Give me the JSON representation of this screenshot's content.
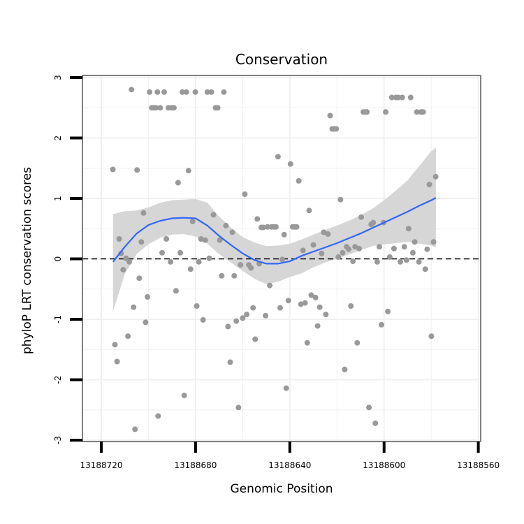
{
  "chart_data": {
    "type": "scatter",
    "title": "Conservation",
    "xlabel": "Genomic Position",
    "ylabel": "phyloP LRT conservation scores",
    "x_reversed": true,
    "xlim": [
      13188728,
      13188559
    ],
    "ylim": [
      -3,
      3
    ],
    "x_ticks": [
      13188720,
      13188680,
      13188640,
      13188600,
      13188560
    ],
    "x_tick_labels": [
      "13188720",
      "13188680",
      "13188640",
      "13188600",
      "13188560"
    ],
    "y_ticks": [
      -3,
      -2,
      -1,
      0,
      1,
      2,
      3
    ],
    "y_tick_labels": [
      "-3",
      "-2",
      "-1",
      "0",
      "1",
      "2",
      "3"
    ],
    "grid": true,
    "reference_line": {
      "y": 0,
      "style": "dashed"
    },
    "colors": {
      "points": "#999999",
      "smooth": "#3366FF",
      "band": "#D4D4D4",
      "panel_border": "#7F7F7F",
      "grid": "#F0F0F0"
    },
    "points": [
      {
        "x": 13188715.1,
        "y": 1.48
      },
      {
        "x": 13188714.2,
        "y": -1.42
      },
      {
        "x": 13188713.3,
        "y": -1.7
      },
      {
        "x": 13188712.4,
        "y": 0.33
      },
      {
        "x": 13188711.6,
        "y": 0.09
      },
      {
        "x": 13188710.7,
        "y": -0.18
      },
      {
        "x": 13188709.5,
        "y": 0.01
      },
      {
        "x": 13188708.7,
        "y": -1.28
      },
      {
        "x": 13188708.1,
        "y": -0.05
      },
      {
        "x": 13188707.2,
        "y": 2.8
      },
      {
        "x": 13188706.3,
        "y": -0.8
      },
      {
        "x": 13188705.7,
        "y": -2.82
      },
      {
        "x": 13188704.8,
        "y": 1.47
      },
      {
        "x": 13188703.9,
        "y": -0.32
      },
      {
        "x": 13188703.0,
        "y": 0.28
      },
      {
        "x": 13188702.1,
        "y": 0.76
      },
      {
        "x": 13188701.2,
        "y": -1.05
      },
      {
        "x": 13188700.4,
        "y": -0.63
      },
      {
        "x": 13188699.5,
        "y": 2.76
      },
      {
        "x": 13188698.6,
        "y": 2.5
      },
      {
        "x": 13188697.7,
        "y": 2.5
      },
      {
        "x": 13188696.8,
        "y": 2.5
      },
      {
        "x": 13188696.2,
        "y": 2.76
      },
      {
        "x": 13188695.9,
        "y": -2.6
      },
      {
        "x": 13188695.0,
        "y": 2.5
      },
      {
        "x": 13188694.2,
        "y": 0.1
      },
      {
        "x": 13188693.3,
        "y": 2.76
      },
      {
        "x": 13188692.4,
        "y": 0.33
      },
      {
        "x": 13188691.5,
        "y": 2.5
      },
      {
        "x": 13188690.6,
        "y": -0.05
      },
      {
        "x": 13188690.1,
        "y": 2.5
      },
      {
        "x": 13188689.2,
        "y": 2.5
      },
      {
        "x": 13188688.3,
        "y": -0.53
      },
      {
        "x": 13188687.4,
        "y": 1.26
      },
      {
        "x": 13188686.5,
        "y": 0.1
      },
      {
        "x": 13188685.6,
        "y": 2.76
      },
      {
        "x": 13188684.8,
        "y": -2.26
      },
      {
        "x": 13188683.9,
        "y": 2.76
      },
      {
        "x": 13188683.0,
        "y": 1.46
      },
      {
        "x": 13188682.1,
        "y": -0.17
      },
      {
        "x": 13188681.2,
        "y": 0.62
      },
      {
        "x": 13188680.1,
        "y": 2.76
      },
      {
        "x": 13188679.5,
        "y": -0.78
      },
      {
        "x": 13188678.6,
        "y": -0.05
      },
      {
        "x": 13188677.7,
        "y": 0.33
      },
      {
        "x": 13188676.8,
        "y": -1.01
      },
      {
        "x": 13188675.9,
        "y": 0.31
      },
      {
        "x": 13188675.0,
        "y": 2.76
      },
      {
        "x": 13188674.2,
        "y": 0.01
      },
      {
        "x": 13188673.3,
        "y": 2.76
      },
      {
        "x": 13188672.4,
        "y": 0.73
      },
      {
        "x": 13188671.5,
        "y": 2.5
      },
      {
        "x": 13188670.6,
        "y": 2.5
      },
      {
        "x": 13188669.7,
        "y": 0.31
      },
      {
        "x": 13188668.9,
        "y": -0.28
      },
      {
        "x": 13188668.0,
        "y": 2.76
      },
      {
        "x": 13188667.1,
        "y": 0.55
      },
      {
        "x": 13188666.2,
        "y": -1.12
      },
      {
        "x": 13188665.3,
        "y": -1.71
      },
      {
        "x": 13188664.4,
        "y": 0.44
      },
      {
        "x": 13188663.6,
        "y": -0.28
      },
      {
        "x": 13188662.7,
        "y": -1.03
      },
      {
        "x": 13188661.8,
        "y": -2.46
      },
      {
        "x": 13188660.9,
        "y": -0.1
      },
      {
        "x": 13188660.0,
        "y": -0.98
      },
      {
        "x": 13188659.1,
        "y": 1.07
      },
      {
        "x": 13188658.3,
        "y": -0.92
      },
      {
        "x": 13188657.4,
        "y": -0.1
      },
      {
        "x": 13188656.5,
        "y": -0.15
      },
      {
        "x": 13188655.6,
        "y": -0.81
      },
      {
        "x": 13188654.7,
        "y": -1.33
      },
      {
        "x": 13188653.8,
        "y": 0.66
      },
      {
        "x": 13188653.0,
        "y": -0.08
      },
      {
        "x": 13188652.1,
        "y": 0.52
      },
      {
        "x": 13188651.2,
        "y": 0.52
      },
      {
        "x": 13188650.3,
        "y": -0.94
      },
      {
        "x": 13188649.4,
        "y": 0.53
      },
      {
        "x": 13188648.5,
        "y": -0.44
      },
      {
        "x": 13188647.7,
        "y": 0.53
      },
      {
        "x": 13188646.8,
        "y": 0.53
      },
      {
        "x": 13188645.9,
        "y": 0.53
      },
      {
        "x": 13188645.0,
        "y": 1.69
      },
      {
        "x": 13188644.1,
        "y": -0.81
      },
      {
        "x": 13188643.2,
        "y": -0.01
      },
      {
        "x": 13188642.4,
        "y": 0.4
      },
      {
        "x": 13188641.5,
        "y": -2.14
      },
      {
        "x": 13188640.6,
        "y": -0.69
      },
      {
        "x": 13188639.7,
        "y": 1.57
      },
      {
        "x": 13188638.8,
        "y": 0.53
      },
      {
        "x": 13188637.9,
        "y": 0.53
      },
      {
        "x": 13188637.1,
        "y": 0.53
      },
      {
        "x": 13188636.2,
        "y": 1.29
      },
      {
        "x": 13188635.3,
        "y": -0.75
      },
      {
        "x": 13188634.4,
        "y": 0.14
      },
      {
        "x": 13188633.5,
        "y": -0.73
      },
      {
        "x": 13188632.6,
        "y": -1.39
      },
      {
        "x": 13188631.8,
        "y": 0.8
      },
      {
        "x": 13188630.9,
        "y": -0.6
      },
      {
        "x": 13188630.0,
        "y": 0.23
      },
      {
        "x": 13188629.1,
        "y": -0.64
      },
      {
        "x": 13188628.2,
        "y": -1.11
      },
      {
        "x": 13188627.3,
        "y": -0.8
      },
      {
        "x": 13188626.5,
        "y": 0.09
      },
      {
        "x": 13188625.6,
        "y": 0.44
      },
      {
        "x": 13188624.7,
        "y": -0.92
      },
      {
        "x": 13188623.8,
        "y": 0.41
      },
      {
        "x": 13188622.9,
        "y": 2.37
      },
      {
        "x": 13188622.0,
        "y": 2.15
      },
      {
        "x": 13188621.2,
        "y": 2.15
      },
      {
        "x": 13188620.3,
        "y": 2.15
      },
      {
        "x": 13188619.4,
        "y": 0.03
      },
      {
        "x": 13188618.5,
        "y": 0.98
      },
      {
        "x": 13188617.6,
        "y": 0.1
      },
      {
        "x": 13188616.7,
        "y": -1.83
      },
      {
        "x": 13188615.9,
        "y": 0.2
      },
      {
        "x": 13188615.0,
        "y": 0.16
      },
      {
        "x": 13188614.1,
        "y": -0.78
      },
      {
        "x": 13188613.2,
        "y": -0.04
      },
      {
        "x": 13188612.3,
        "y": 0.2
      },
      {
        "x": 13188611.4,
        "y": -1.39
      },
      {
        "x": 13188610.6,
        "y": 0.17
      },
      {
        "x": 13188609.7,
        "y": 0.69
      },
      {
        "x": 13188608.8,
        "y": 2.43
      },
      {
        "x": 13188607.9,
        "y": 2.43
      },
      {
        "x": 13188607.3,
        "y": 2.43
      },
      {
        "x": 13188606.4,
        "y": -2.46
      },
      {
        "x": 13188605.5,
        "y": 0.57
      },
      {
        "x": 13188604.6,
        "y": 0.6
      },
      {
        "x": 13188603.7,
        "y": -2.72
      },
      {
        "x": 13188602.9,
        "y": -0.05
      },
      {
        "x": 13188602.0,
        "y": 0.2
      },
      {
        "x": 13188601.1,
        "y": -1.09
      },
      {
        "x": 13188600.2,
        "y": 0.6
      },
      {
        "x": 13188599.3,
        "y": 2.43
      },
      {
        "x": 13188598.4,
        "y": -0.87
      },
      {
        "x": 13188597.6,
        "y": 0.03
      },
      {
        "x": 13188596.7,
        "y": 2.67
      },
      {
        "x": 13188595.8,
        "y": 0.17
      },
      {
        "x": 13188594.9,
        "y": 2.67
      },
      {
        "x": 13188594.0,
        "y": 2.67
      },
      {
        "x": 13188593.1,
        "y": -0.05
      },
      {
        "x": 13188592.3,
        "y": 2.67
      },
      {
        "x": 13188591.4,
        "y": 0.2
      },
      {
        "x": 13188590.5,
        "y": -0.02
      },
      {
        "x": 13188589.6,
        "y": 0.5
      },
      {
        "x": 13188588.7,
        "y": 2.67
      },
      {
        "x": 13188587.8,
        "y": 0.1
      },
      {
        "x": 13188587.0,
        "y": 0.28
      },
      {
        "x": 13188586.1,
        "y": 2.43
      },
      {
        "x": 13188585.2,
        "y": -0.05
      },
      {
        "x": 13188584.3,
        "y": 2.43
      },
      {
        "x": 13188583.4,
        "y": 2.43
      },
      {
        "x": 13188582.5,
        "y": -0.17
      },
      {
        "x": 13188581.7,
        "y": 0.16
      },
      {
        "x": 13188580.8,
        "y": 1.23
      },
      {
        "x": 13188579.9,
        "y": -1.28
      },
      {
        "x": 13188579.0,
        "y": 0.28
      },
      {
        "x": 13188578.1,
        "y": 1.36
      }
    ],
    "smooth": [
      {
        "x": 13188715.0,
        "y": -0.05,
        "lo": -0.87,
        "hi": 0.74
      },
      {
        "x": 13188710.0,
        "y": 0.2,
        "lo": -0.25,
        "hi": 0.79
      },
      {
        "x": 13188705.0,
        "y": 0.42,
        "lo": 0.08,
        "hi": 0.8
      },
      {
        "x": 13188700.0,
        "y": 0.56,
        "lo": 0.24,
        "hi": 0.85
      },
      {
        "x": 13188695.0,
        "y": 0.63,
        "lo": 0.35,
        "hi": 0.93
      },
      {
        "x": 13188690.0,
        "y": 0.67,
        "lo": 0.4,
        "hi": 0.97
      },
      {
        "x": 13188685.0,
        "y": 0.68,
        "lo": 0.41,
        "hi": 0.98
      },
      {
        "x": 13188680.0,
        "y": 0.67,
        "lo": 0.37,
        "hi": 0.99
      },
      {
        "x": 13188675.0,
        "y": 0.55,
        "lo": 0.25,
        "hi": 0.93
      },
      {
        "x": 13188670.0,
        "y": 0.38,
        "lo": 0.08,
        "hi": 0.7
      },
      {
        "x": 13188665.0,
        "y": 0.23,
        "lo": -0.06,
        "hi": 0.52
      },
      {
        "x": 13188660.0,
        "y": 0.09,
        "lo": -0.2,
        "hi": 0.36
      },
      {
        "x": 13188655.0,
        "y": -0.02,
        "lo": -0.33,
        "hi": 0.27
      },
      {
        "x": 13188650.0,
        "y": -0.08,
        "lo": -0.42,
        "hi": 0.21
      },
      {
        "x": 13188645.0,
        "y": -0.08,
        "lo": -0.38,
        "hi": 0.22
      },
      {
        "x": 13188640.0,
        "y": -0.04,
        "lo": -0.3,
        "hi": 0.25
      },
      {
        "x": 13188635.0,
        "y": 0.05,
        "lo": -0.24,
        "hi": 0.32
      },
      {
        "x": 13188630.0,
        "y": 0.12,
        "lo": -0.14,
        "hi": 0.4
      },
      {
        "x": 13188625.0,
        "y": 0.19,
        "lo": -0.06,
        "hi": 0.48
      },
      {
        "x": 13188620.0,
        "y": 0.26,
        "lo": 0.0,
        "hi": 0.55
      },
      {
        "x": 13188615.0,
        "y": 0.34,
        "lo": 0.07,
        "hi": 0.63
      },
      {
        "x": 13188610.0,
        "y": 0.42,
        "lo": 0.14,
        "hi": 0.72
      },
      {
        "x": 13188605.0,
        "y": 0.51,
        "lo": 0.21,
        "hi": 0.83
      },
      {
        "x": 13188600.0,
        "y": 0.6,
        "lo": 0.24,
        "hi": 0.97
      },
      {
        "x": 13188595.0,
        "y": 0.69,
        "lo": 0.26,
        "hi": 1.13
      },
      {
        "x": 13188590.0,
        "y": 0.78,
        "lo": 0.28,
        "hi": 1.3
      },
      {
        "x": 13188585.0,
        "y": 0.88,
        "lo": 0.25,
        "hi": 1.54
      },
      {
        "x": 13188580.0,
        "y": 0.97,
        "lo": 0.22,
        "hi": 1.78
      },
      {
        "x": 13188578.0,
        "y": 1.01,
        "lo": 0.19,
        "hi": 1.84
      }
    ]
  }
}
